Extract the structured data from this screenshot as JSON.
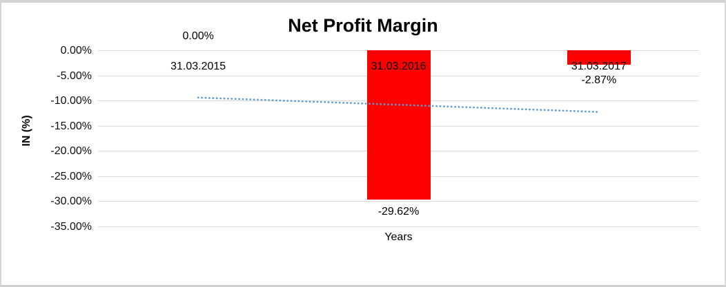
{
  "window": {
    "background_color": "#ffffff",
    "border_color": "#d4d4d4"
  },
  "chart_data": {
    "type": "bar",
    "title": "Net Profit Margin",
    "xlabel": "Years",
    "ylabel": "IN (%)",
    "categories": [
      "31.03.2015",
      "31.03.2016",
      "31.03.2017"
    ],
    "values": [
      0.0,
      -29.62,
      -2.87
    ],
    "data_labels": [
      "0.00%",
      "-29.62%",
      "-2.87%"
    ],
    "ylim": [
      -35,
      0
    ],
    "ytick_step": -5,
    "ytick_labels": [
      "0.00%",
      "-5.00%",
      "-10.00%",
      "-15.00%",
      "-20.00%",
      "-25.00%",
      "-30.00%",
      "-35.00%"
    ],
    "grid": true,
    "legend_position": "none",
    "bar_color": "#ff0000",
    "gridline_color": "#d9d9d9",
    "text_color": "#000000",
    "trendline": {
      "type": "linear",
      "style": "dotted",
      "color": "#5b9bd5",
      "start_value": -9.4,
      "end_value": -12.26
    }
  }
}
